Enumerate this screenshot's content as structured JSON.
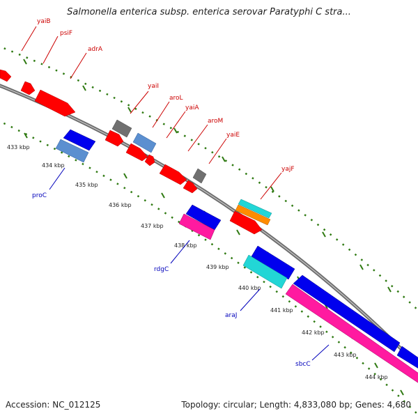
{
  "title": "Salmonella enterica subsp. enterica serovar Paratyphi C stra...",
  "footer": {
    "accession": "Accession: NC_012125",
    "summary": "Topology: circular; Length: 4,833,080 bp; Genes: 4,680"
  },
  "colors": {
    "backbone": "#8a8a8a",
    "tick": "#2f7a12",
    "forward_label": "#cc0000",
    "reverse_label": "#0000bb",
    "red": "#ff0000",
    "grey": "#707070",
    "steelblue": "#5b8fd0",
    "blue": "#0000ee",
    "magenta": "#ff1aa0",
    "cyan": "#22d6d6",
    "orange": "#ff8c00"
  },
  "kbp_labels": [
    "433 kbp",
    "434 kbp",
    "435 kbp",
    "436 kbp",
    "437 kbp",
    "438 kbp",
    "439 kbp",
    "440 kbp",
    "441 kbp",
    "442 kbp",
    "443 kbp",
    "444 kbp"
  ],
  "forward_labels": [
    "yaiB",
    "psiF",
    "adrA",
    "yaiI",
    "aroL",
    "yaiA",
    "aroM",
    "yaiE",
    "yajF"
  ],
  "reverse_labels": [
    "proC",
    "rdgC",
    "araJ",
    "sbcC"
  ]
}
